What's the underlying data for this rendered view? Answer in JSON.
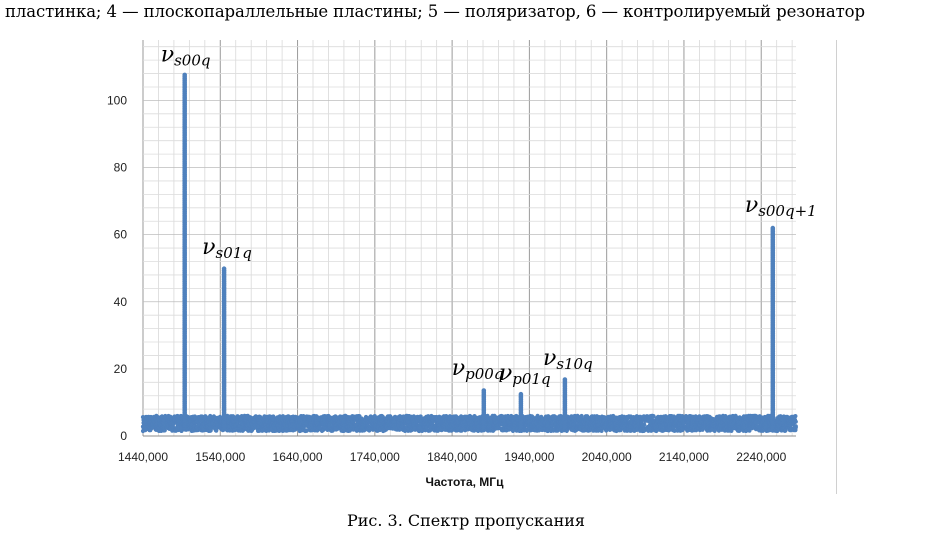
{
  "page": {
    "top_text": "пластинка; 4 — плоскопараллельные пластины; 5 — поляризатор, 6 — контролируемый резонатор",
    "figure_caption": "Рис. 3. Спектр пропускания"
  },
  "chart_data": {
    "type": "scatter",
    "xlabel": "Частота, МГц",
    "ylabel": "",
    "xlim": [
      1440,
      2285
    ],
    "ylim": [
      0,
      118
    ],
    "x_ticks": [
      1440,
      1540,
      1640,
      1740,
      1840,
      1940,
      2040,
      2140,
      2240
    ],
    "x_tick_labels": [
      "1440,000",
      "1540,000",
      "1640,000",
      "1740,000",
      "1840,000",
      "1940,000",
      "2040,000",
      "2140,000",
      "2240,000"
    ],
    "y_ticks": [
      0,
      20,
      40,
      60,
      80,
      100
    ],
    "y_tick_labels": [
      "0",
      "20",
      "40",
      "60",
      "80",
      "100"
    ],
    "grid": true,
    "series_color": "#4f81bd",
    "baseline": {
      "x_range": [
        1440,
        2285
      ],
      "y_range": [
        1.5,
        6.0
      ]
    },
    "peaks": [
      {
        "x": 1494,
        "y": 108,
        "label": "ν",
        "label_sub": "s00q"
      },
      {
        "x": 1545,
        "y": 50,
        "label": "ν",
        "label_sub": "s01q"
      },
      {
        "x": 1881,
        "y": 14,
        "label": "ν",
        "label_sub": "p00q"
      },
      {
        "x": 1929,
        "y": 12.5,
        "label": "ν",
        "label_sub": "p01q"
      },
      {
        "x": 1986,
        "y": 17,
        "label": "ν",
        "label_sub": "s10q"
      },
      {
        "x": 2255,
        "y": 62,
        "label": "ν",
        "label_sub": "s00q+1"
      }
    ]
  }
}
